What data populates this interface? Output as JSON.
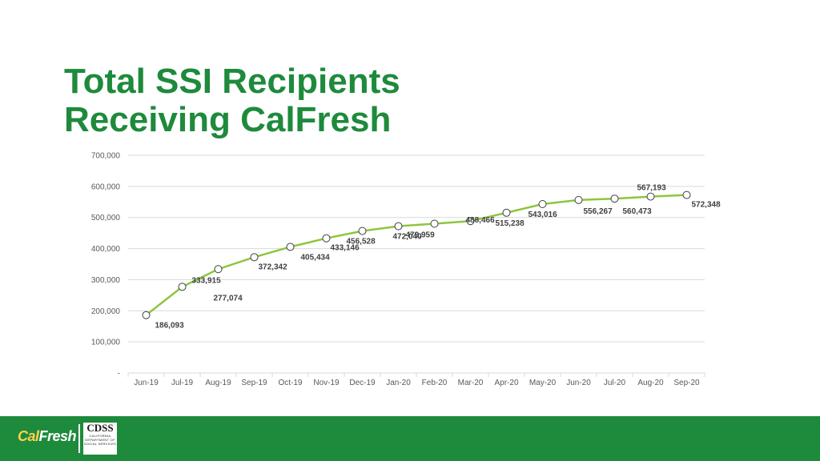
{
  "title": {
    "line1": "Total SSI Recipients",
    "line2": "Receiving CalFresh"
  },
  "chart_data": {
    "type": "line",
    "categories": [
      "Jun-19",
      "Jul-19",
      "Aug-19",
      "Sep-19",
      "Oct-19",
      "Nov-19",
      "Dec-19",
      "Jan-20",
      "Feb-20",
      "Mar-20",
      "Apr-20",
      "May-20",
      "Jun-20",
      "Jul-20",
      "Aug-20",
      "Sep-20"
    ],
    "values": [
      186093,
      277074,
      333915,
      372342,
      405434,
      433146,
      456528,
      472040,
      479959,
      488466,
      515238,
      543016,
      556267,
      560473,
      567193,
      572348
    ],
    "data_labels": [
      "186,093",
      "277,074",
      "333,915",
      "372,342",
      "405,434",
      "433,146",
      "456,528",
      "472,040",
      "479,959",
      "488,466",
      "515,238",
      "543,016",
      "556,267",
      "560,473",
      "567,193",
      "572,348"
    ],
    "y_ticks": [
      0,
      100000,
      200000,
      300000,
      400000,
      500000,
      600000,
      700000
    ],
    "y_tick_labels": [
      "-",
      "100,000",
      "200,000",
      "300,000",
      "400,000",
      "500,000",
      "600,000",
      "700,000"
    ],
    "ylim": [
      0,
      700000
    ],
    "grid": true,
    "line_color": "#8dc63f",
    "marker_fill": "#ffffff",
    "marker_stroke": "#404040",
    "grid_color": "#d9d9d9"
  },
  "footer": {
    "color": "#1e8a3c",
    "calfresh_logo": {
      "cal": "Cal",
      "fresh": "Fresh"
    },
    "cdss_logo": {
      "abbr": "CDSS",
      "state": "CALIFORNIA",
      "dept1": "DEPARTMENT OF",
      "dept2": "SOCIAL SERVICES"
    }
  }
}
